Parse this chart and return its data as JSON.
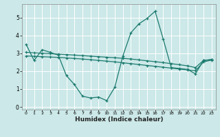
{
  "xlabel": "Humidex (Indice chaleur)",
  "ylabel": "",
  "background_color": "#cce8e8",
  "line_color": "#1a7a6e",
  "grid_color": "#ffffff",
  "xlim": [
    -0.5,
    23.5
  ],
  "ylim": [
    -0.15,
    5.75
  ],
  "xticks": [
    0,
    1,
    2,
    3,
    4,
    5,
    6,
    7,
    8,
    9,
    10,
    11,
    12,
    13,
    14,
    15,
    16,
    17,
    18,
    19,
    20,
    21,
    22,
    23
  ],
  "yticks": [
    0,
    1,
    2,
    3,
    4,
    5
  ],
  "line1_x": [
    0,
    1,
    2,
    3,
    4,
    5,
    6,
    7,
    8,
    9,
    10,
    11,
    12,
    13,
    14,
    15,
    16,
    17,
    18,
    19,
    20,
    21,
    22,
    23
  ],
  "line1_y": [
    3.5,
    2.6,
    3.2,
    3.05,
    2.9,
    1.75,
    1.25,
    0.6,
    0.5,
    0.55,
    0.35,
    1.1,
    2.85,
    4.15,
    4.65,
    4.95,
    5.35,
    3.8,
    2.2,
    2.15,
    2.1,
    1.85,
    2.6,
    2.65
  ],
  "line2_x": [
    0,
    1,
    2,
    3,
    4,
    5,
    6,
    7,
    8,
    9,
    10,
    11,
    12,
    13,
    14,
    15,
    16,
    17,
    18,
    19,
    20,
    21,
    22,
    23
  ],
  "line2_y": [
    3.05,
    3.02,
    3.0,
    2.98,
    2.95,
    2.93,
    2.9,
    2.87,
    2.84,
    2.81,
    2.78,
    2.75,
    2.72,
    2.68,
    2.63,
    2.58,
    2.53,
    2.48,
    2.42,
    2.36,
    2.3,
    2.2,
    2.6,
    2.65
  ],
  "line3_x": [
    0,
    1,
    2,
    3,
    4,
    5,
    6,
    7,
    8,
    9,
    10,
    11,
    12,
    13,
    14,
    15,
    16,
    17,
    18,
    19,
    20,
    21,
    22,
    23
  ],
  "line3_y": [
    2.85,
    2.83,
    2.81,
    2.79,
    2.77,
    2.74,
    2.71,
    2.68,
    2.64,
    2.6,
    2.56,
    2.52,
    2.47,
    2.42,
    2.37,
    2.32,
    2.27,
    2.22,
    2.17,
    2.12,
    2.07,
    2.02,
    2.52,
    2.62
  ]
}
